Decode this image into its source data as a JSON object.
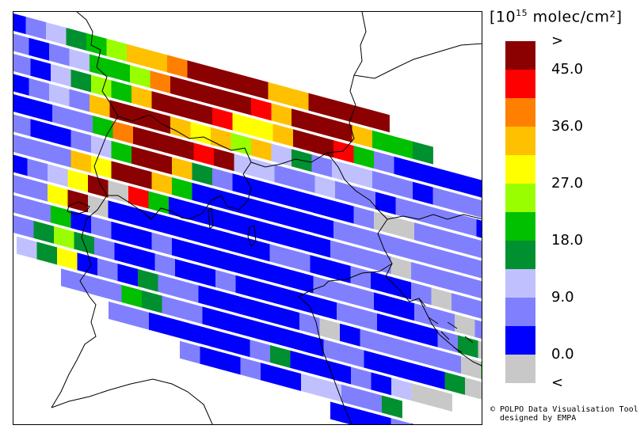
{
  "legend": {
    "unit_prefix": "[",
    "unit_base": "10",
    "unit_exponent": "15",
    "unit_rest": " molec/cm²",
    "unit_suffix": "]",
    "classes": [
      {
        "color": "#8b0000",
        "label": ">"
      },
      {
        "color": "#ff0000",
        "label": "45.0"
      },
      {
        "color": "#ff8000",
        "label": ""
      },
      {
        "color": "#ffc000",
        "label": "36.0"
      },
      {
        "color": "#ffff00",
        "label": ""
      },
      {
        "color": "#99ff00",
        "label": "27.0"
      },
      {
        "color": "#00c000",
        "label": ""
      },
      {
        "color": "#009030",
        "label": "18.0"
      },
      {
        "color": "#c0c0ff",
        "label": ""
      },
      {
        "color": "#8080ff",
        "label": "9.0"
      },
      {
        "color": "#0000ff",
        "label": ""
      },
      {
        "color": "#c8c8c8",
        "label": "0.0"
      },
      {
        "color": "",
        "label": "<"
      }
    ]
  },
  "credit": {
    "line1": "© POLPO Data Visualisation Tool",
    "line2": "designed by EMPA"
  },
  "map": {
    "swath_colors": [
      [
        "#0000ff",
        "#8080ff",
        "#c0c0ff",
        "#009030",
        "#00c000",
        "#99ff00",
        "#ffc000",
        "#ffc000",
        "#ff8000",
        "#8b0000",
        "#8b0000",
        "#8b0000",
        "#8b0000",
        "#ffc000",
        "#ffc000",
        "#8b0000",
        "#8b0000",
        "#8b0000",
        "#8b0000"
      ],
      [
        "#8080ff",
        "#0000ff",
        "#8080ff",
        "#c0c0ff",
        "#00c000",
        "#00c000",
        "#99ff00",
        "#ff8000",
        "#8b0000",
        "#8b0000",
        "#8b0000",
        "#8b0000",
        "#ff0000",
        "#ffc000",
        "#8b0000",
        "#8b0000",
        "#8b0000",
        "#ffc000",
        "#00c000",
        "#00c000",
        "#009030"
      ],
      [
        "#8080ff",
        "#0000ff",
        "#c0c0ff",
        "#009030",
        "#99ff00",
        "#00c000",
        "#ffc000",
        "#8b0000",
        "#8b0000",
        "#8b0000",
        "#ff0000",
        "#ffff00",
        "#ffff00",
        "#ffc000",
        "#8b0000",
        "#8b0000",
        "#ff0000",
        "#00c000",
        "#8080ff",
        "#0000ff",
        "#0000ff",
        "#0000ff",
        "#0000ff",
        "#0000ff"
      ],
      [
        "#0000ff",
        "#8080ff",
        "#c0c0ff",
        "#8080ff",
        "#ffc000",
        "#8b0000",
        "#8b0000",
        "#8b0000",
        "#ffc000",
        "#ffff00",
        "#ffc000",
        "#99ff00",
        "#ffc000",
        "#c0c0ff",
        "#009030",
        "#8080ff",
        "#c0c0ff",
        "#c0c0ff",
        "#8080ff",
        "#8080ff",
        "#0000ff",
        "#8080ff",
        "#8080ff",
        "#8080ff"
      ],
      [
        "#0000ff",
        "#0000ff",
        "#8080ff",
        "#8080ff",
        "#00c000",
        "#ff8000",
        "#8b0000",
        "#8b0000",
        "#8b0000",
        "#ff0000",
        "#8b0000",
        "#c0c0ff",
        "#c0c0ff",
        "#8080ff",
        "#8080ff",
        "#c0c0ff",
        "#8080ff",
        "#8080ff",
        "#0000ff",
        "#8080ff",
        "#8080ff",
        "#8080ff",
        "#8080ff",
        "#0000ff"
      ],
      [
        "#8080ff",
        "#0000ff",
        "#0000ff",
        "#8080ff",
        "#c0c0ff",
        "#00c000",
        "#8b0000",
        "#8b0000",
        "#ffc000",
        "#009030",
        "#8080ff",
        "#0000ff",
        "#0000ff",
        "#0000ff",
        "#0000ff",
        "#0000ff",
        "#0000ff",
        "#8080ff",
        "#c8c8c8",
        "#c8c8c8",
        "#8080ff",
        "#8080ff",
        "#8080ff",
        "#8080ff"
      ],
      [
        "#8080ff",
        "#8080ff",
        "#8080ff",
        "#ffc000",
        "#ffff00",
        "#8b0000",
        "#8b0000",
        "#ffc000",
        "#00c000",
        "#0000ff",
        "#0000ff",
        "#0000ff",
        "#0000ff",
        "#0000ff",
        "#0000ff",
        "#0000ff",
        "#8080ff",
        "#8080ff",
        "#8080ff",
        "#8080ff",
        "#8080ff",
        "#8080ff",
        "#8080ff",
        "#8080ff"
      ],
      [
        "#0000ff",
        "#8080ff",
        "#c0c0ff",
        "#ffff00",
        "#8b0000",
        "#c8c8c8",
        "#ff0000",
        "#00c000",
        "#0000ff",
        "#0000ff",
        "#0000ff",
        "#0000ff",
        "#0000ff",
        "#0000ff",
        "#0000ff",
        "#0000ff",
        "#8080ff",
        "#8080ff",
        "#8080ff",
        "#c8c8c8",
        "#8080ff",
        "#8080ff",
        "#8080ff",
        "#8080ff"
      ],
      [
        "#8080ff",
        "#8080ff",
        "#ffff00",
        "#8b0000",
        "#c8c8c8",
        "#0000ff",
        "#0000ff",
        "#0000ff",
        "#0000ff",
        "#0000ff",
        "#0000ff",
        "#0000ff",
        "#0000ff",
        "#8080ff",
        "#8080ff",
        "#0000ff",
        "#0000ff",
        "#8080ff",
        "#0000ff",
        "#0000ff",
        "#8080ff",
        "#c8c8c8",
        "#8080ff",
        "#8080ff"
      ],
      [
        "#8080ff",
        "#8080ff",
        "#00c000",
        "#0000ff",
        "#8080ff",
        "#0000ff",
        "#0000ff",
        "#8080ff",
        "#0000ff",
        "#0000ff",
        "#0000ff",
        "#0000ff",
        "#0000ff",
        "#0000ff",
        "#0000ff",
        "#8080ff",
        "#8080ff",
        "#8080ff",
        "#0000ff",
        "#0000ff",
        "#8080ff",
        "#8080ff",
        "#c8c8c8",
        "#8080ff"
      ],
      [
        "#8080ff",
        "#009030",
        "#99ff00",
        "#009030",
        "#8080ff",
        "#0000ff",
        "#0000ff",
        "#8080ff",
        "#0000ff",
        "#0000ff",
        "#8080ff",
        "#0000ff",
        "#0000ff",
        "#0000ff",
        "#0000ff",
        "#0000ff",
        "#8080ff",
        "#8080ff",
        "#0000ff",
        "#0000ff",
        "#0000ff",
        "#8080ff",
        "#009030",
        "#c8c8c8"
      ],
      [
        "#c0c0ff",
        "#009030",
        "#ffff00",
        "#0000ff",
        "#8080ff",
        "#0000ff",
        "#009030",
        "#8080ff",
        "#8080ff",
        "#0000ff",
        "#0000ff",
        "#0000ff",
        "#0000ff",
        "#0000ff",
        "#8080ff",
        "#c8c8c8",
        "#0000ff",
        "#8080ff",
        "#8080ff",
        "#8080ff",
        "#8080ff",
        "#8080ff",
        "#c8c8c8",
        "#00c000"
      ],
      [
        "#8080ff",
        "#8080ff",
        "#8080ff",
        "#00c000",
        "#009030",
        "#8080ff",
        "#8080ff",
        "#0000ff",
        "#0000ff",
        "#0000ff",
        "#0000ff",
        "#0000ff",
        "#0000ff",
        "#8080ff",
        "#8080ff",
        "#0000ff",
        "#0000ff",
        "#0000ff",
        "#0000ff",
        "#009030",
        "#c8c8c8",
        "#c8c8c8"
      ],
      [
        "#8080ff",
        "#8080ff",
        "#0000ff",
        "#0000ff",
        "#0000ff",
        "#0000ff",
        "#0000ff",
        "#8080ff",
        "#009030",
        "#0000ff",
        "#0000ff",
        "#0000ff",
        "#8080ff",
        "#0000ff",
        "#c0c0ff",
        "#c8c8c8",
        "#c8c8c8"
      ],
      [
        "#8080ff",
        "#0000ff",
        "#0000ff",
        "#8080ff",
        "#0000ff",
        "#0000ff",
        "#c0c0ff",
        "#c0c0ff",
        "#8080ff",
        "#8080ff",
        "#009030"
      ],
      [
        "#0000ff",
        "#0000ff",
        "#0000ff",
        "#8080ff",
        "#0000ff",
        "#8080ff"
      ]
    ]
  }
}
